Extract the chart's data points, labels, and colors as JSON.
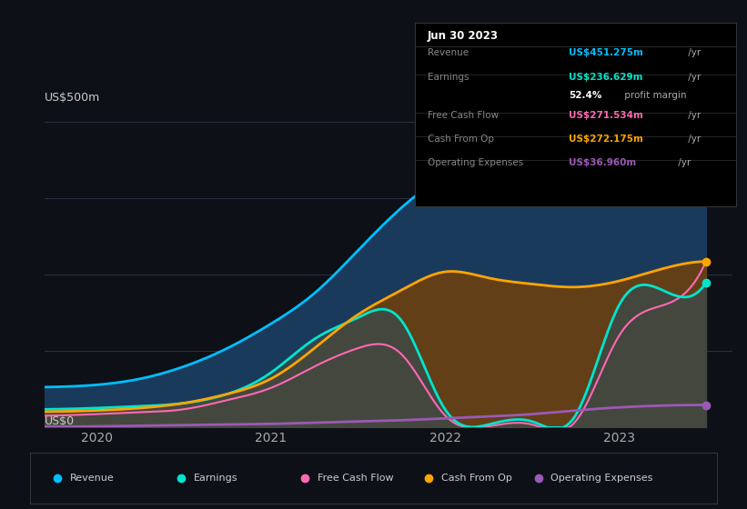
{
  "bg_color": "#0d1117",
  "grid_color": "#2a3042",
  "x_ticks": [
    2020,
    2021,
    2022,
    2023
  ],
  "y_label": "US$500m",
  "y0_label": "US$0",
  "ylim": [
    0,
    500
  ],
  "xlim_start": 2019.7,
  "xlim_end": 2023.65,
  "series_x": [
    2019.5,
    2020.0,
    2020.25,
    2020.5,
    2020.75,
    2021.0,
    2021.25,
    2021.5,
    2021.75,
    2022.0,
    2022.25,
    2022.5,
    2022.75,
    2023.0,
    2023.25,
    2023.5
  ],
  "revenue": [
    65,
    70,
    80,
    100,
    130,
    170,
    220,
    290,
    360,
    410,
    430,
    440,
    438,
    440,
    445,
    451
  ],
  "earnings": [
    30,
    32,
    35,
    40,
    55,
    90,
    145,
    180,
    175,
    30,
    5,
    10,
    20,
    200,
    225,
    237
  ],
  "free_cash_flow": [
    20,
    22,
    25,
    30,
    45,
    65,
    100,
    130,
    120,
    20,
    2,
    5,
    10,
    150,
    200,
    272
  ],
  "cash_from_op": [
    25,
    28,
    32,
    40,
    55,
    80,
    130,
    185,
    225,
    255,
    245,
    235,
    230,
    240,
    260,
    272
  ],
  "operating_expenses": [
    2,
    2,
    3,
    4,
    5,
    6,
    8,
    10,
    12,
    15,
    18,
    22,
    28,
    33,
    36,
    37
  ],
  "revenue_color": "#00bfff",
  "revenue_fill": "#1a3a5c",
  "earnings_color": "#00e5cc",
  "free_cash_flow_color": "#ff69b4",
  "cash_from_op_color": "#ffa500",
  "cash_from_op_fill": "#6b4010",
  "earnings_fill": "#3a4a4a",
  "operating_expenses_color": "#9b59b6",
  "tooltip_title": "Jun 30 2023",
  "tooltip_rows": [
    {
      "label": "Revenue",
      "value": "US$451.275m",
      "suffix": " /yr",
      "color": "#00bfff"
    },
    {
      "label": "Earnings",
      "value": "US$236.629m",
      "suffix": " /yr",
      "color": "#00e5cc"
    },
    {
      "label": "",
      "value": "52.4%",
      "suffix": " profit margin",
      "color": "#ffffff"
    },
    {
      "label": "Free Cash Flow",
      "value": "US$271.534m",
      "suffix": " /yr",
      "color": "#ff69b4"
    },
    {
      "label": "Cash From Op",
      "value": "US$272.175m",
      "suffix": " /yr",
      "color": "#ffa500"
    },
    {
      "label": "Operating Expenses",
      "value": "US$36.960m",
      "suffix": " /yr",
      "color": "#9b59b6"
    }
  ],
  "legend_items": [
    {
      "label": "Revenue",
      "color": "#00bfff"
    },
    {
      "label": "Earnings",
      "color": "#00e5cc"
    },
    {
      "label": "Free Cash Flow",
      "color": "#ff69b4"
    },
    {
      "label": "Cash From Op",
      "color": "#ffa500"
    },
    {
      "label": "Operating Expenses",
      "color": "#9b59b6"
    }
  ]
}
